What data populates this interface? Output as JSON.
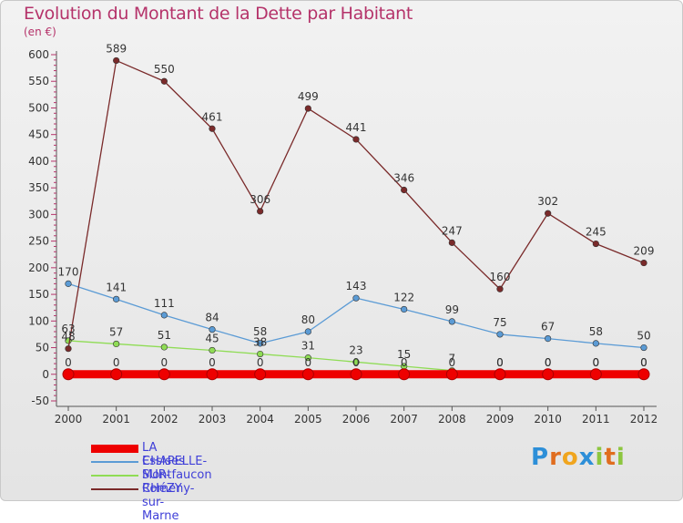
{
  "title": "Evolution du Montant de la Dette par Habitant",
  "subtitle": "(en €)",
  "logo": {
    "letters": [
      "P",
      "r",
      "o",
      "x",
      "i",
      "t",
      "i"
    ],
    "colors": [
      "#2d8fd8",
      "#e06d1f",
      "#f0a51e",
      "#2d8fd8",
      "#8dc63f",
      "#e06d1f",
      "#8dc63f"
    ]
  },
  "chart_data": {
    "type": "line",
    "x": [
      "2000",
      "2001",
      "2002",
      "2003",
      "2004",
      "2005",
      "2006",
      "2007",
      "2008",
      "2009",
      "2010",
      "2011",
      "2012"
    ],
    "ylim": [
      -50,
      600
    ],
    "yticks": [
      "-50",
      "0",
      "50",
      "100",
      "150",
      "200",
      "250",
      "300",
      "350",
      "400",
      "450",
      "500",
      "550",
      "600"
    ],
    "grid": false,
    "series": [
      {
        "name": "LA CHAPELLE-SUR-CHéZY",
        "color": "#ee0000",
        "values": [
          0,
          0,
          0,
          0,
          0,
          0,
          0,
          0,
          0,
          0,
          0,
          0,
          0
        ],
        "labels": [
          "0",
          "0",
          "0",
          "0",
          "0",
          "0",
          "0",
          "0",
          "0",
          "0",
          "0",
          "0",
          "0"
        ]
      },
      {
        "name": "Essises",
        "color": "#5b9bd5",
        "values": [
          170,
          141,
          111,
          84,
          58,
          80,
          143,
          122,
          99,
          75,
          67,
          58,
          50
        ],
        "labels": [
          "170",
          "141",
          "111",
          "84",
          "58",
          "80",
          "143",
          "122",
          "99",
          "75",
          "67",
          "58",
          "50"
        ]
      },
      {
        "name": "Montfaucon",
        "color": "#8fdc55",
        "values": [
          63,
          57,
          51,
          45,
          38,
          31,
          23,
          15,
          7,
          0,
          0,
          0,
          0
        ],
        "labels": [
          "63",
          "57",
          "51",
          "45",
          "38",
          "31",
          "23",
          "15",
          "7",
          "0",
          "0",
          "0",
          "0"
        ]
      },
      {
        "name": "Romeny-sur-Marne",
        "color": "#7a2a2a",
        "values": [
          48,
          589,
          550,
          461,
          306,
          499,
          441,
          346,
          247,
          160,
          302,
          245,
          209
        ],
        "labels": [
          "48",
          "589",
          "550",
          "461",
          "306",
          "499",
          "441",
          "346",
          "247",
          "160",
          "302",
          "245",
          "209"
        ]
      }
    ]
  }
}
